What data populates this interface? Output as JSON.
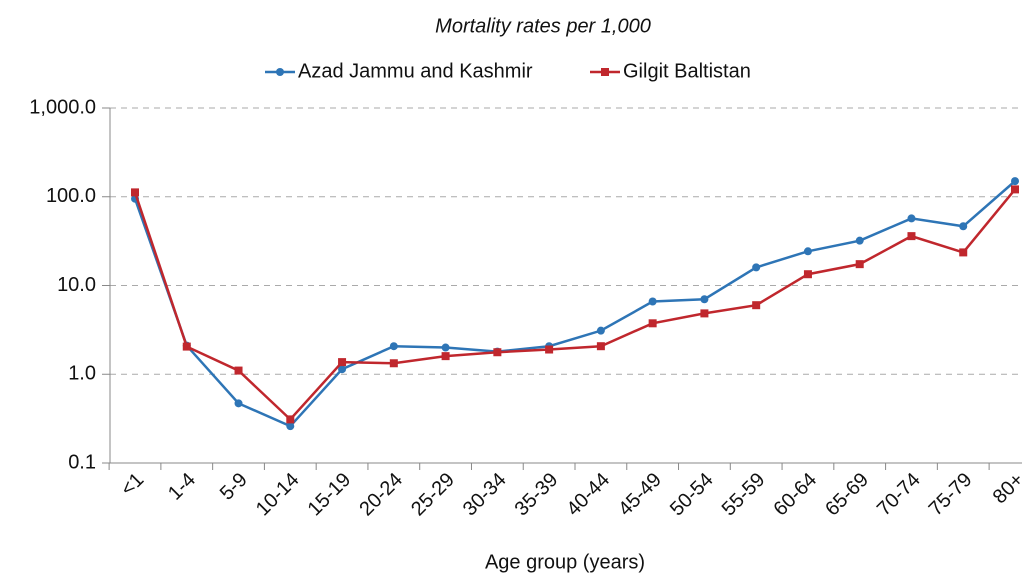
{
  "chart_data": {
    "type": "line",
    "title": "Mortality rates per 1,000",
    "x_label": "Age group (years)",
    "categories": [
      "<1",
      "1-4",
      "5-9",
      "10-14",
      "15-19",
      "20-24",
      "25-29",
      "30-34",
      "35-39",
      "40-44",
      "45-49",
      "50-54",
      "55-59",
      "60-64",
      "65-69",
      "70-74",
      "75-79",
      "80+"
    ],
    "series": [
      {
        "name": "Azad Jammu and Kashmir",
        "color": "#2e75b6",
        "marker": "circle",
        "values": [
          95,
          2.1,
          0.47,
          0.26,
          1.14,
          2.07,
          2.0,
          1.8,
          2.07,
          3.1,
          6.6,
          7.0,
          16,
          24.3,
          32,
          57,
          46.5,
          150
        ]
      },
      {
        "name": "Gilgit Baltistan",
        "color": "#c0272d",
        "marker": "square",
        "values": [
          112,
          2.05,
          1.1,
          0.31,
          1.37,
          1.33,
          1.6,
          1.77,
          1.9,
          2.07,
          3.75,
          4.85,
          6.0,
          13.4,
          17.4,
          36,
          23.6,
          121
        ]
      }
    ],
    "log_scale": true,
    "ylim": [
      0.1,
      1000
    ],
    "yticks": [
      0.1,
      {
        "value": 1,
        "label": "1.0"
      },
      {
        "value": 10,
        "label": "10.0"
      },
      {
        "value": 100,
        "label": "100.0"
      },
      {
        "value": 1000,
        "label": "1,000.0"
      }
    ],
    "grid": true,
    "legend": "top"
  }
}
